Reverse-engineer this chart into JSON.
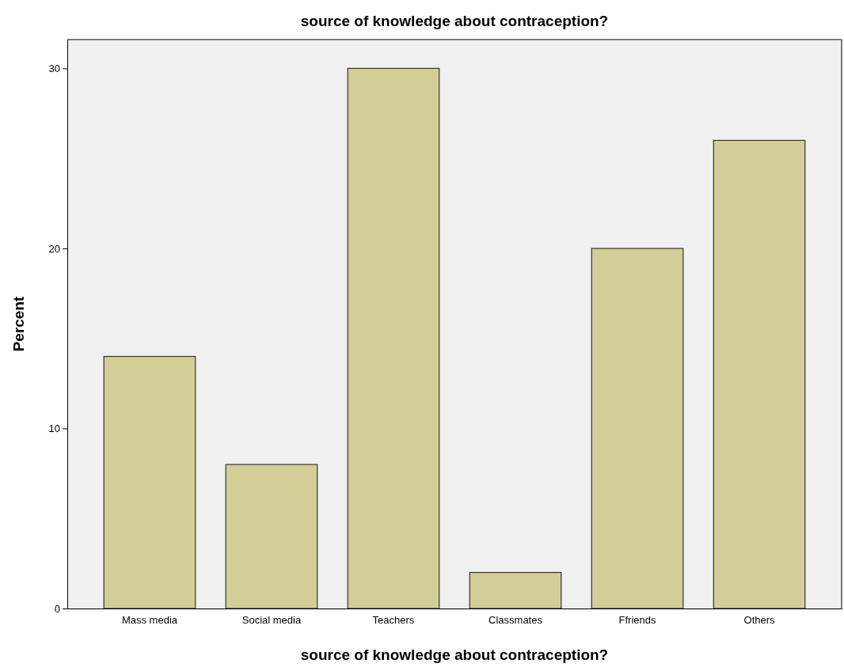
{
  "chart_data": {
    "type": "bar",
    "title": "source of knowledge about contraception?",
    "xlabel": "source of knowledge about contraception?",
    "ylabel": "Percent",
    "categories": [
      "Mass media",
      "Social media",
      "Teachers",
      "Classmates",
      "Ffriends",
      "Others"
    ],
    "values": [
      14,
      8,
      30,
      2,
      20,
      26
    ],
    "color": "#d3ce97",
    "ylim": [
      0,
      31.6
    ],
    "yticks": [
      0,
      10,
      20,
      30
    ],
    "grid": false
  }
}
